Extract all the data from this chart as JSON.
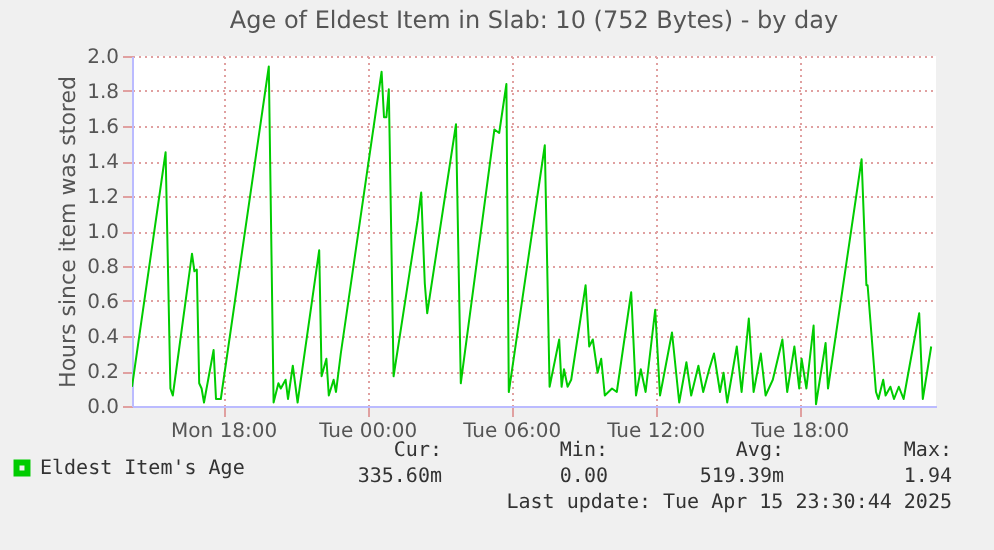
{
  "chart_data": {
    "type": "line",
    "title": "Age of Eldest Item in Slab: 10 (752 Bytes) - by day",
    "ylabel": "Hours since item was stored",
    "x": [
      "2025-04-14T14:12",
      "2025-04-14T15:36",
      "2025-04-14T15:48",
      "2025-04-14T15:54",
      "2025-04-14T16:42",
      "2025-04-14T16:48",
      "2025-04-14T16:54",
      "2025-04-14T17:00",
      "2025-04-14T17:06",
      "2025-04-14T17:12",
      "2025-04-14T17:36",
      "2025-04-14T17:42",
      "2025-04-14T17:54",
      "2025-04-14T19:54",
      "2025-04-14T20:06",
      "2025-04-14T20:18",
      "2025-04-14T20:24",
      "2025-04-14T20:36",
      "2025-04-14T20:42",
      "2025-04-14T20:54",
      "2025-04-14T21:06",
      "2025-04-14T22:00",
      "2025-04-14T22:06",
      "2025-04-14T22:18",
      "2025-04-14T22:24",
      "2025-04-14T22:36",
      "2025-04-14T22:42",
      "2025-04-14T22:54",
      "2025-04-15T00:36",
      "2025-04-15T00:42",
      "2025-04-15T00:48",
      "2025-04-15T00:54",
      "2025-04-15T01:06",
      "2025-04-15T02:06",
      "2025-04-15T02:15",
      "2025-04-15T02:24",
      "2025-04-15T02:30",
      "2025-04-15T03:42",
      "2025-04-15T03:54",
      "2025-04-15T05:18",
      "2025-04-15T05:30",
      "2025-04-15T05:48",
      "2025-04-15T05:54",
      "2025-04-15T07:24",
      "2025-04-15T07:36",
      "2025-04-15T08:00",
      "2025-04-15T08:06",
      "2025-04-15T08:12",
      "2025-04-15T08:21",
      "2025-04-15T08:30",
      "2025-04-15T09:06",
      "2025-04-15T09:15",
      "2025-04-15T09:24",
      "2025-04-15T09:36",
      "2025-04-15T09:45",
      "2025-04-15T09:54",
      "2025-04-15T10:12",
      "2025-04-15T10:24",
      "2025-04-15T11:00",
      "2025-04-15T11:12",
      "2025-04-15T11:24",
      "2025-04-15T11:36",
      "2025-04-15T12:00",
      "2025-04-15T12:12",
      "2025-04-15T12:18",
      "2025-04-15T12:42",
      "2025-04-15T13:00",
      "2025-04-15T13:18",
      "2025-04-15T13:30",
      "2025-04-15T13:48",
      "2025-04-15T14:00",
      "2025-04-15T14:15",
      "2025-04-15T14:27",
      "2025-04-15T14:42",
      "2025-04-15T14:51",
      "2025-04-15T15:00",
      "2025-04-15T15:24",
      "2025-04-15T15:36",
      "2025-04-15T15:54",
      "2025-04-15T16:06",
      "2025-04-15T16:24",
      "2025-04-15T16:36",
      "2025-04-15T16:54",
      "2025-04-15T17:18",
      "2025-04-15T17:30",
      "2025-04-15T17:48",
      "2025-04-15T18:00",
      "2025-04-15T18:06",
      "2025-04-15T18:18",
      "2025-04-15T18:36",
      "2025-04-15T18:42",
      "2025-04-15T19:06",
      "2025-04-15T19:12",
      "2025-04-15T20:36",
      "2025-04-15T20:48",
      "2025-04-15T20:51",
      "2025-04-15T21:12",
      "2025-04-15T21:18",
      "2025-04-15T21:30",
      "2025-04-15T21:36",
      "2025-04-15T21:48",
      "2025-04-15T21:57",
      "2025-04-15T22:09",
      "2025-04-15T22:21",
      "2025-04-15T22:36",
      "2025-04-15T23:00",
      "2025-04-15T23:09",
      "2025-04-15T23:30"
    ],
    "series": [
      {
        "name": "Eldest Item's Age",
        "color": "#00cc00",
        "values": [
          0.11,
          1.45,
          0.1,
          0.06,
          0.87,
          0.77,
          0.78,
          0.13,
          0.1,
          0.02,
          0.32,
          0.04,
          0.04,
          1.94,
          0.02,
          0.13,
          0.1,
          0.15,
          0.04,
          0.23,
          0.02,
          0.89,
          0.17,
          0.27,
          0.06,
          0.15,
          0.08,
          0.3,
          1.91,
          1.65,
          1.65,
          1.81,
          0.17,
          1.06,
          1.22,
          0.7,
          0.53,
          1.61,
          0.13,
          1.58,
          1.56,
          1.84,
          0.08,
          1.49,
          0.11,
          0.38,
          0.11,
          0.21,
          0.11,
          0.15,
          0.69,
          0.34,
          0.38,
          0.19,
          0.27,
          0.06,
          0.1,
          0.08,
          0.65,
          0.06,
          0.21,
          0.08,
          0.55,
          0.06,
          0.13,
          0.42,
          0.02,
          0.25,
          0.06,
          0.23,
          0.08,
          0.21,
          0.3,
          0.08,
          0.19,
          0.02,
          0.34,
          0.08,
          0.5,
          0.08,
          0.3,
          0.06,
          0.15,
          0.38,
          0.08,
          0.34,
          0.1,
          0.27,
          0.1,
          0.46,
          0.01,
          0.36,
          0.1,
          1.41,
          0.69,
          0.69,
          0.08,
          0.04,
          0.15,
          0.06,
          0.11,
          0.04,
          0.11,
          0.04,
          0.23,
          0.53,
          0.04,
          0.34
        ]
      }
    ],
    "xlim": [
      "2025-04-14T14:12",
      "2025-04-15T23:42"
    ],
    "xticks": [
      {
        "value": "2025-04-14T18:00",
        "label": "Mon 18:00"
      },
      {
        "value": "2025-04-15T00:00",
        "label": "Tue 00:00"
      },
      {
        "value": "2025-04-15T06:00",
        "label": "Tue 06:00"
      },
      {
        "value": "2025-04-15T12:00",
        "label": "Tue 12:00"
      },
      {
        "value": "2025-04-15T18:00",
        "label": "Tue 18:00"
      }
    ],
    "ylim": [
      0,
      2.0
    ],
    "yticks": [
      {
        "value": 0,
        "label": "0.0"
      },
      0.2,
      0.4,
      0.6,
      0.8,
      {
        "value": 1,
        "label": "1.0"
      },
      1.2,
      1.4,
      1.6,
      1.8,
      {
        "value": 2,
        "label": "2.0"
      }
    ],
    "grid": true,
    "legend": "bottom",
    "line_style": "solid",
    "annotations": [
      "Cur:",
      "335.60m",
      "Min:",
      "0.00",
      "Avg:",
      "519.39m",
      "Max:",
      "1.94",
      "Last update: Tue Apr 15 23:30:44 2025"
    ]
  }
}
